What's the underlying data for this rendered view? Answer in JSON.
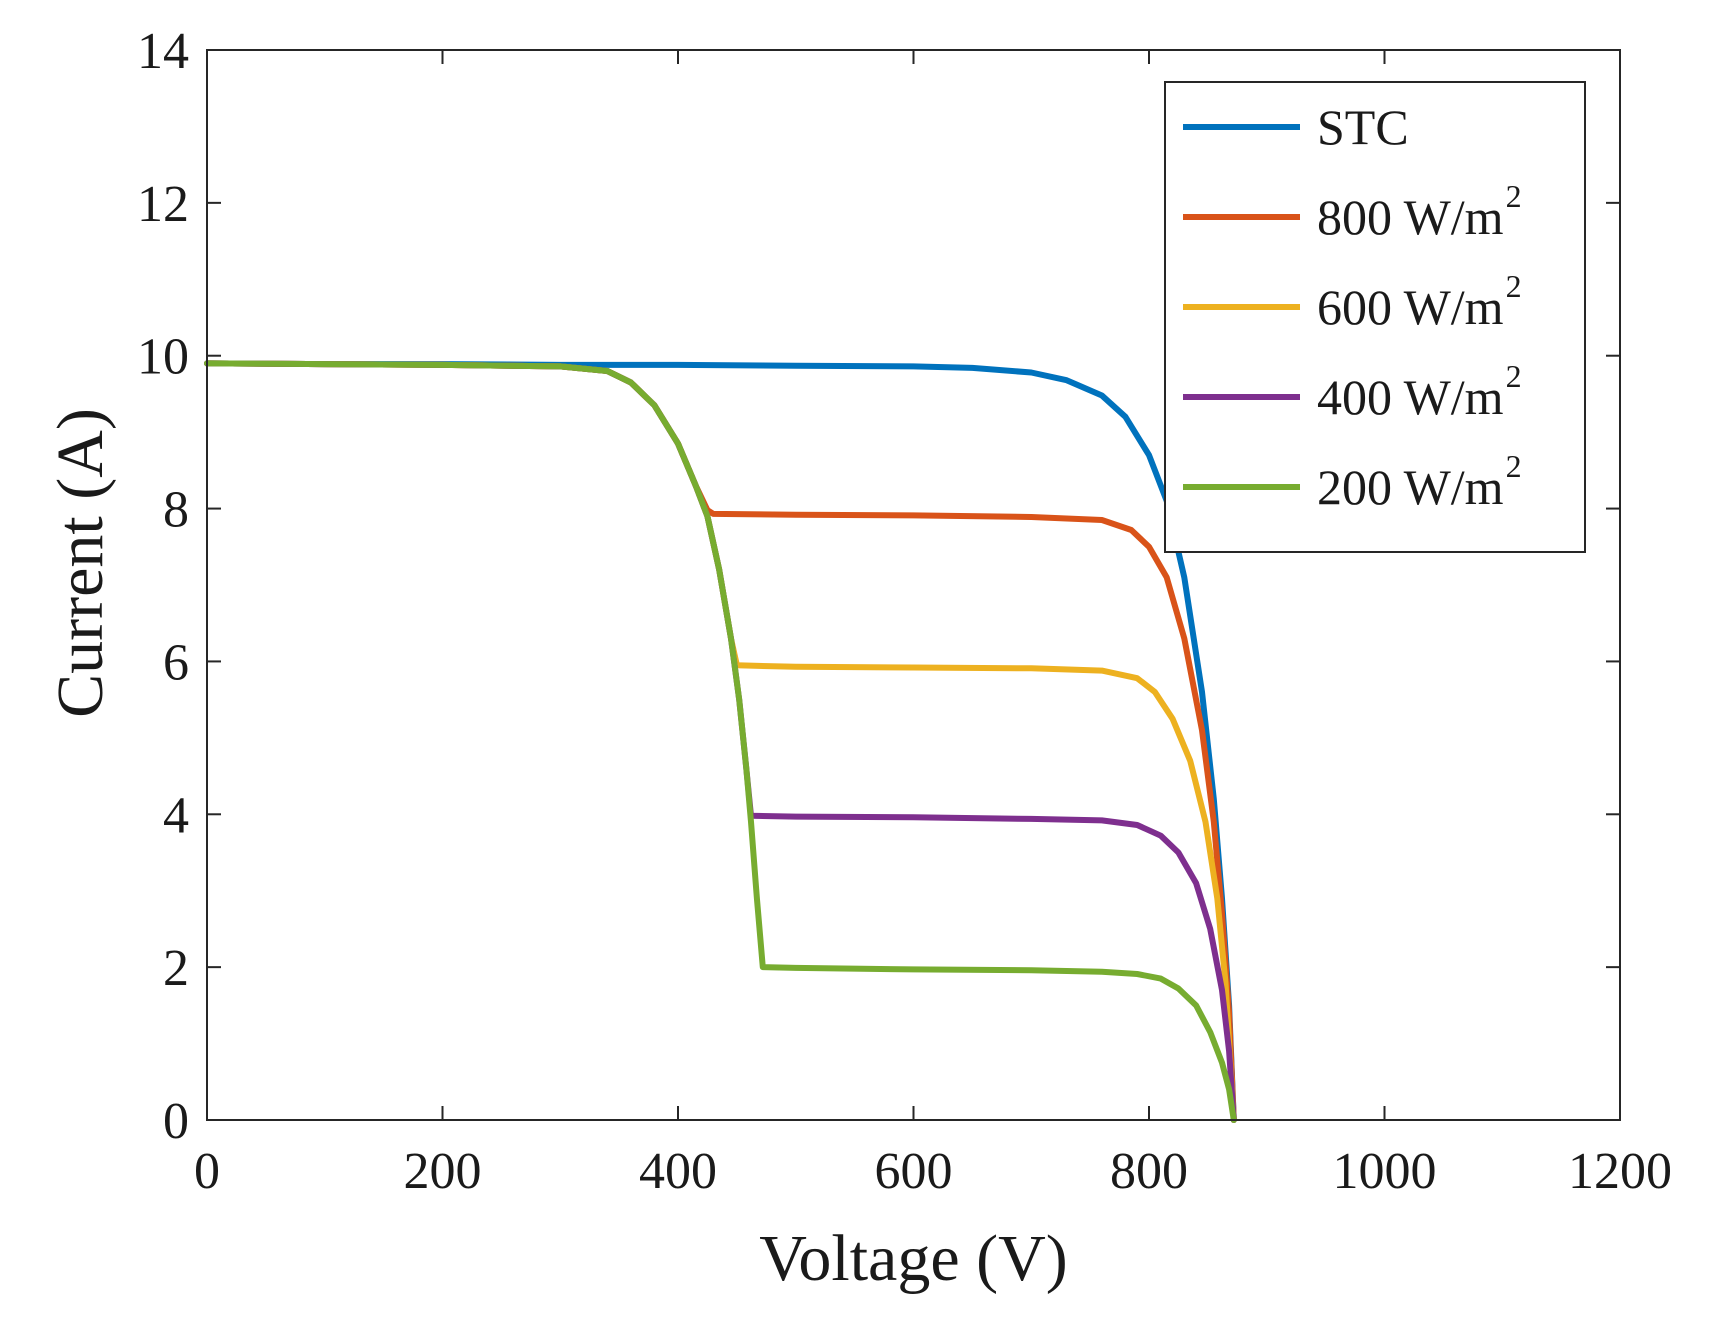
{
  "chart_data": {
    "type": "line",
    "title": "",
    "xlabel": "Voltage (V)",
    "ylabel": "Current (A)",
    "xlim": [
      0,
      1200
    ],
    "ylim": [
      0,
      14
    ],
    "xticks": [
      0,
      200,
      400,
      600,
      800,
      1000,
      1200
    ],
    "yticks": [
      0,
      2,
      4,
      6,
      8,
      10,
      12,
      14
    ],
    "xtick_labels": [
      "0",
      "200",
      "400",
      "600",
      "800",
      "1000",
      "1200"
    ],
    "ytick_labels": [
      "0",
      "2",
      "4",
      "6",
      "8",
      "10",
      "12",
      "14"
    ],
    "grid": false,
    "legend_position": "top-right",
    "series": [
      {
        "name": "STC",
        "label": "STC",
        "sup": "",
        "color": "#0072BD",
        "points": [
          [
            0,
            9.9
          ],
          [
            100,
            9.89
          ],
          [
            200,
            9.89
          ],
          [
            300,
            9.88
          ],
          [
            400,
            9.88
          ],
          [
            500,
            9.87
          ],
          [
            600,
            9.86
          ],
          [
            650,
            9.84
          ],
          [
            700,
            9.78
          ],
          [
            730,
            9.68
          ],
          [
            760,
            9.48
          ],
          [
            780,
            9.2
          ],
          [
            800,
            8.7
          ],
          [
            815,
            8.1
          ],
          [
            830,
            7.1
          ],
          [
            845,
            5.6
          ],
          [
            855,
            4.2
          ],
          [
            862,
            2.9
          ],
          [
            868,
            1.5
          ],
          [
            872,
            0
          ]
        ]
      },
      {
        "name": "800 W/m2",
        "label": "800 W/m",
        "sup": "2",
        "color": "#D95319",
        "points": [
          [
            0,
            9.9
          ],
          [
            100,
            9.89
          ],
          [
            200,
            9.88
          ],
          [
            300,
            9.86
          ],
          [
            340,
            9.8
          ],
          [
            360,
            9.65
          ],
          [
            380,
            9.35
          ],
          [
            400,
            8.85
          ],
          [
            415,
            8.3
          ],
          [
            425,
            7.98
          ],
          [
            430,
            7.93
          ],
          [
            500,
            7.92
          ],
          [
            600,
            7.91
          ],
          [
            700,
            7.89
          ],
          [
            760,
            7.85
          ],
          [
            785,
            7.72
          ],
          [
            800,
            7.5
          ],
          [
            815,
            7.1
          ],
          [
            830,
            6.3
          ],
          [
            845,
            5.1
          ],
          [
            855,
            3.9
          ],
          [
            862,
            2.7
          ],
          [
            868,
            1.4
          ],
          [
            872,
            0
          ]
        ]
      },
      {
        "name": "600 W/m2",
        "label": "600 W/m",
        "sup": "2",
        "color": "#EDB120",
        "points": [
          [
            0,
            9.9
          ],
          [
            100,
            9.89
          ],
          [
            200,
            9.88
          ],
          [
            300,
            9.86
          ],
          [
            340,
            9.8
          ],
          [
            360,
            9.65
          ],
          [
            380,
            9.35
          ],
          [
            400,
            8.85
          ],
          [
            415,
            8.3
          ],
          [
            425,
            7.9
          ],
          [
            435,
            7.2
          ],
          [
            445,
            6.3
          ],
          [
            450,
            5.95
          ],
          [
            500,
            5.93
          ],
          [
            600,
            5.92
          ],
          [
            700,
            5.91
          ],
          [
            760,
            5.88
          ],
          [
            790,
            5.78
          ],
          [
            805,
            5.6
          ],
          [
            820,
            5.25
          ],
          [
            835,
            4.7
          ],
          [
            848,
            3.9
          ],
          [
            858,
            2.9
          ],
          [
            865,
            1.8
          ],
          [
            872,
            0
          ]
        ]
      },
      {
        "name": "400 W/m2",
        "label": "400 W/m",
        "sup": "2",
        "color": "#7E2F8E",
        "points": [
          [
            0,
            9.9
          ],
          [
            100,
            9.89
          ],
          [
            200,
            9.88
          ],
          [
            300,
            9.86
          ],
          [
            340,
            9.8
          ],
          [
            360,
            9.65
          ],
          [
            380,
            9.35
          ],
          [
            400,
            8.85
          ],
          [
            415,
            8.3
          ],
          [
            425,
            7.9
          ],
          [
            435,
            7.2
          ],
          [
            445,
            6.3
          ],
          [
            452,
            5.5
          ],
          [
            458,
            4.6
          ],
          [
            462,
            3.98
          ],
          [
            500,
            3.97
          ],
          [
            600,
            3.96
          ],
          [
            700,
            3.94
          ],
          [
            760,
            3.92
          ],
          [
            790,
            3.86
          ],
          [
            810,
            3.72
          ],
          [
            825,
            3.5
          ],
          [
            840,
            3.1
          ],
          [
            852,
            2.5
          ],
          [
            862,
            1.7
          ],
          [
            868,
            0.9
          ],
          [
            872,
            0
          ]
        ]
      },
      {
        "name": "200 W/m2",
        "label": "200 W/m",
        "sup": "2",
        "color": "#77AC30",
        "points": [
          [
            0,
            9.9
          ],
          [
            100,
            9.89
          ],
          [
            200,
            9.88
          ],
          [
            300,
            9.86
          ],
          [
            340,
            9.8
          ],
          [
            360,
            9.65
          ],
          [
            380,
            9.35
          ],
          [
            400,
            8.85
          ],
          [
            415,
            8.3
          ],
          [
            425,
            7.9
          ],
          [
            435,
            7.2
          ],
          [
            445,
            6.3
          ],
          [
            452,
            5.5
          ],
          [
            458,
            4.6
          ],
          [
            462,
            3.9
          ],
          [
            467,
            2.9
          ],
          [
            472,
            2.0
          ],
          [
            500,
            1.99
          ],
          [
            600,
            1.97
          ],
          [
            700,
            1.96
          ],
          [
            760,
            1.94
          ],
          [
            790,
            1.91
          ],
          [
            810,
            1.85
          ],
          [
            825,
            1.72
          ],
          [
            840,
            1.5
          ],
          [
            852,
            1.15
          ],
          [
            862,
            0.75
          ],
          [
            868,
            0.4
          ],
          [
            872,
            0
          ]
        ]
      }
    ]
  }
}
